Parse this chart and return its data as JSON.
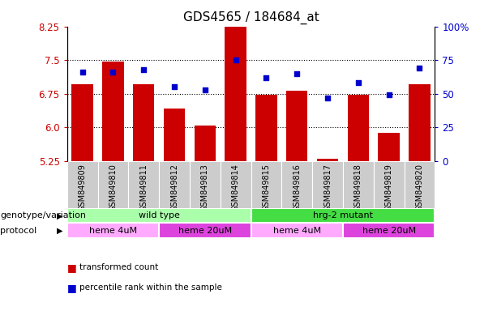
{
  "title": "GDS4565 / 184684_at",
  "samples": [
    "GSM849809",
    "GSM849810",
    "GSM849811",
    "GSM849812",
    "GSM849813",
    "GSM849814",
    "GSM849815",
    "GSM849816",
    "GSM849817",
    "GSM849818",
    "GSM849819",
    "GSM849820"
  ],
  "bar_values": [
    6.97,
    7.47,
    6.97,
    6.42,
    6.05,
    8.27,
    6.72,
    6.82,
    5.3,
    6.72,
    5.88,
    6.97
  ],
  "dot_values": [
    66,
    66,
    68,
    55,
    53,
    75,
    62,
    65,
    47,
    58,
    49,
    69
  ],
  "ylim": [
    5.25,
    8.25
  ],
  "yticks": [
    5.25,
    6.0,
    6.75,
    7.5,
    8.25
  ],
  "right_yticks": [
    0,
    25,
    50,
    75,
    100
  ],
  "right_ylim": [
    0,
    100
  ],
  "bar_color": "#cc0000",
  "dot_color": "#0000cc",
  "genotype_labels": [
    "wild type",
    "hrg-2 mutant"
  ],
  "genotype_colors": [
    "#aaffaa",
    "#44dd44"
  ],
  "genotype_ranges": [
    [
      0,
      6
    ],
    [
      6,
      12
    ]
  ],
  "protocol_labels": [
    "heme 4uM",
    "heme 20uM",
    "heme 4uM",
    "heme 20uM"
  ],
  "protocol_colors": [
    "#ffaaff",
    "#dd44dd",
    "#ffaaff",
    "#dd44dd"
  ],
  "protocol_ranges": [
    [
      0,
      3
    ],
    [
      3,
      6
    ],
    [
      6,
      9
    ],
    [
      9,
      12
    ]
  ],
  "legend_bar_label": "transformed count",
  "legend_dot_label": "percentile rank within the sample",
  "title_fontsize": 11,
  "tick_label_fontsize": 7,
  "right_tick_color": "#0000cc",
  "left_tick_color": "#cc0000",
  "sample_bg_color": "#cccccc",
  "row_label_fontsize": 8,
  "annotation_label_fontsize": 8
}
